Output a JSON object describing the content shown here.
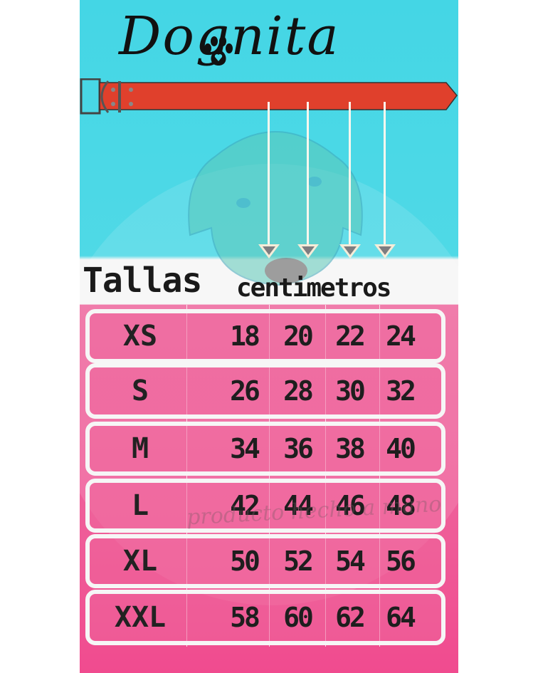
{
  "brand": {
    "logo_text": "Dognita",
    "paw_icon": "paw-heart-icon"
  },
  "colors": {
    "top_background": "#44d6e5",
    "table_background": "#ef5c98",
    "collar": "#e0402c",
    "text": "#1a1a1a"
  },
  "header": {
    "sizes_label": "Tallas",
    "unit_label": "centimetros"
  },
  "table": {
    "rows": [
      {
        "size": "XS",
        "values": [
          "18",
          "20",
          "22",
          "24"
        ]
      },
      {
        "size": "S",
        "values": [
          "26",
          "28",
          "30",
          "32"
        ]
      },
      {
        "size": "M",
        "values": [
          "34",
          "36",
          "38",
          "40"
        ]
      },
      {
        "size": "L",
        "values": [
          "42",
          "44",
          "46",
          "48"
        ]
      },
      {
        "size": "XL",
        "values": [
          "50",
          "52",
          "54",
          "56"
        ]
      },
      {
        "size": "XXL",
        "values": [
          "58",
          "60",
          "62",
          "64"
        ]
      }
    ]
  },
  "watermark": "producto hecho a mano"
}
